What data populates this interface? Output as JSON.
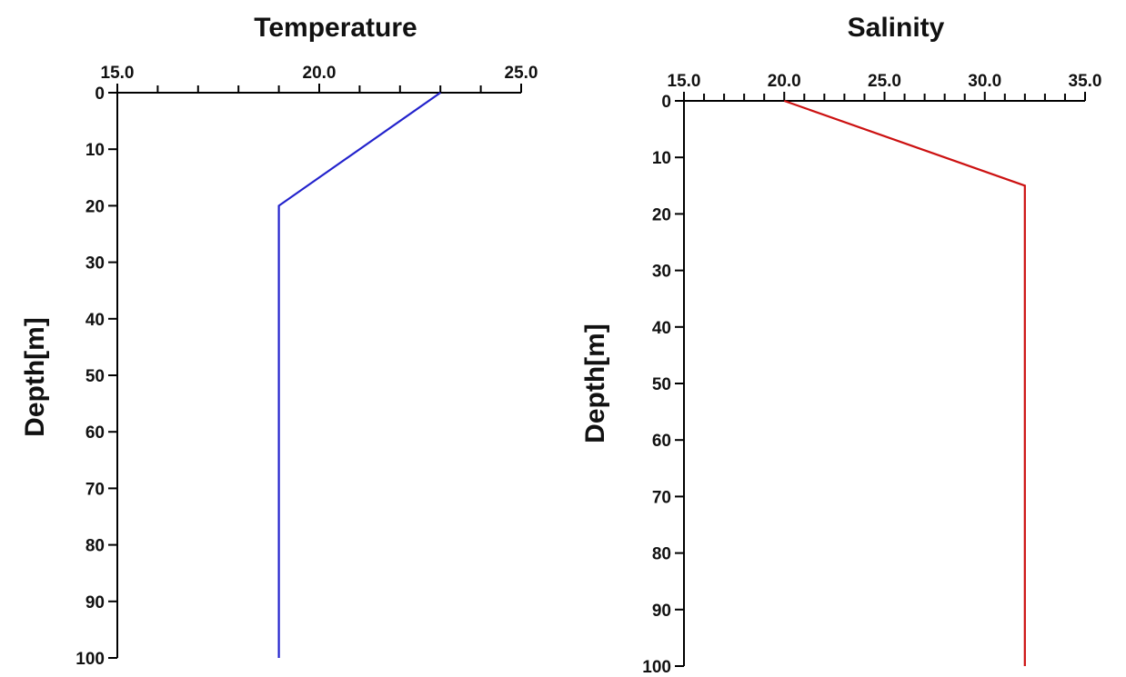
{
  "chart_data": [
    {
      "type": "line",
      "title": "Temperature",
      "ylabel": "Depth[m]",
      "xlabel": "",
      "xlim": [
        15.0,
        25.0
      ],
      "x_ticks_labeled": [
        "15.0",
        "20.0",
        "25.0"
      ],
      "x_minor_step": 1.0,
      "ylim": [
        0,
        100
      ],
      "y_inverted": true,
      "y_ticks": [
        "0",
        "10",
        "20",
        "30",
        "40",
        "50",
        "60",
        "70",
        "80",
        "90",
        "100"
      ],
      "x_axis_position": "top",
      "grid": false,
      "series": [
        {
          "color": "#2222cc",
          "x": [
            23.0,
            19.0,
            19.0
          ],
          "y": [
            0,
            20,
            100
          ]
        }
      ]
    },
    {
      "type": "line",
      "title": "Salinity",
      "ylabel": "Depth[m]",
      "xlabel": "",
      "xlim": [
        15.0,
        35.0
      ],
      "x_ticks_labeled": [
        "15.0",
        "20.0",
        "25.0",
        "30.0",
        "35.0"
      ],
      "x_minor_step": 1.0,
      "ylim": [
        0,
        100
      ],
      "y_inverted": true,
      "y_ticks": [
        "0",
        "10",
        "20",
        "30",
        "40",
        "50",
        "60",
        "70",
        "80",
        "90",
        "100"
      ],
      "x_axis_position": "top",
      "grid": false,
      "series": [
        {
          "color": "#cc1111",
          "x": [
            20.0,
            32.0,
            32.0
          ],
          "y": [
            0,
            15,
            100
          ]
        }
      ]
    }
  ]
}
